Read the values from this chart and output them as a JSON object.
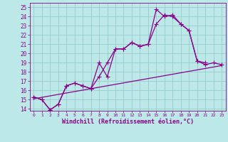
{
  "xlabel": "Windchill (Refroidissement éolien,°C)",
  "bg_color": "#bde8e8",
  "grid_color": "#99cccc",
  "line_color": "#880088",
  "xlim": [
    0,
    23
  ],
  "ylim": [
    13.8,
    25.5
  ],
  "x_ticks": [
    0,
    1,
    2,
    3,
    4,
    5,
    6,
    7,
    8,
    9,
    10,
    11,
    12,
    13,
    14,
    15,
    16,
    17,
    18,
    19,
    20,
    21,
    22,
    23
  ],
  "y_ticks": [
    14,
    15,
    16,
    17,
    18,
    19,
    20,
    21,
    22,
    23,
    24,
    25
  ],
  "line1_x": [
    0,
    1,
    2,
    3,
    4,
    5,
    6,
    7,
    8,
    9,
    10,
    11,
    12,
    13,
    14,
    15,
    16,
    17,
    18,
    19,
    20,
    21
  ],
  "line1_y": [
    15.3,
    15.0,
    13.9,
    14.5,
    16.5,
    16.8,
    16.5,
    16.2,
    19.0,
    17.5,
    20.5,
    20.5,
    21.2,
    20.8,
    21.0,
    24.8,
    24.0,
    24.2,
    23.2,
    22.5,
    19.2,
    19.0
  ],
  "line2_x": [
    0,
    1,
    2,
    3,
    4,
    5,
    6,
    7,
    8,
    9,
    10,
    11,
    12,
    13,
    14,
    15,
    16,
    17,
    18,
    19,
    20,
    21,
    22,
    23
  ],
  "line2_y": [
    15.3,
    15.0,
    13.9,
    14.5,
    16.5,
    16.8,
    16.5,
    16.2,
    17.5,
    19.0,
    20.5,
    20.5,
    21.2,
    20.8,
    21.0,
    23.2,
    24.2,
    24.0,
    23.2,
    22.5,
    19.2,
    18.8,
    19.0,
    18.8
  ],
  "line3_x": [
    0,
    23
  ],
  "line3_y": [
    15.1,
    18.7
  ]
}
